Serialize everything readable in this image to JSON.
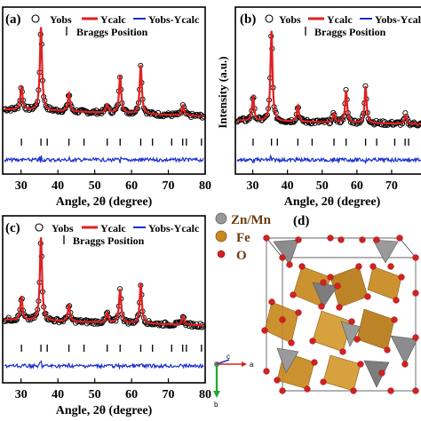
{
  "figure": {
    "panels": {
      "a": {
        "label": "(a)"
      },
      "b": {
        "label": "(b)"
      },
      "c": {
        "label": "(c)"
      },
      "d": {
        "label": "(d)"
      }
    },
    "legend": {
      "yobs": "Yobs",
      "ycalc": "Ycalc",
      "diff": "Yobs-Ycalc",
      "braggs": "Braggs Position"
    },
    "colors": {
      "ycalc": "#e02020",
      "diff": "#1a2fcc",
      "obs": "#000000"
    },
    "xlabel": "Angle, 2θ (degree)",
    "ylabel": "Intensity (a.u.)",
    "structure_legend": {
      "items": [
        {
          "label": "Zn/Mn",
          "color": "#9a9a9a"
        },
        {
          "label": "Fe",
          "color": "#c8891e"
        },
        {
          "label": "O",
          "color": "#d62020"
        }
      ]
    },
    "axes_gizmo": {
      "a": "a",
      "b": "b",
      "c": "c"
    }
  },
  "chart_data": [
    {
      "panel": "a",
      "type": "line",
      "xlabel": "Angle, 2θ (degree)",
      "ylabel": "",
      "xlim": [
        25,
        80
      ],
      "xticks": [
        30,
        40,
        50,
        60,
        70,
        80
      ],
      "series": [
        {
          "name": "Yobs",
          "style": "open-circles"
        },
        {
          "name": "Ycalc",
          "style": "line"
        },
        {
          "name": "Yobs-Ycalc",
          "style": "line"
        }
      ],
      "peaks": [
        [
          30.1,
          0.28
        ],
        [
          35.4,
          1.0
        ],
        [
          43.0,
          0.22
        ],
        [
          53.4,
          0.1
        ],
        [
          56.9,
          0.45
        ],
        [
          62.5,
          0.58
        ],
        [
          74.0,
          0.12
        ]
      ],
      "baseline": 0.12,
      "bragg_positions": [
        30.1,
        35.4,
        37.1,
        43.0,
        47.1,
        53.4,
        56.9,
        62.5,
        65.7,
        70.9,
        73.9,
        74.9,
        79.0
      ]
    },
    {
      "panel": "b",
      "type": "line",
      "xlabel": "Angle, 2θ (degree)",
      "ylabel": "Intensity (a.u.)",
      "xlim": [
        25,
        80
      ],
      "xticks": [
        30,
        40,
        50,
        60,
        70
      ],
      "series": [
        {
          "name": "Yobs",
          "style": "open-circles"
        },
        {
          "name": "Ycalc",
          "style": "line"
        },
        {
          "name": "Yobs-Ycalc",
          "style": "line"
        }
      ],
      "peaks": [
        [
          30.1,
          0.28
        ],
        [
          35.4,
          1.0
        ],
        [
          43.0,
          0.18
        ],
        [
          53.4,
          0.1
        ],
        [
          56.9,
          0.35
        ],
        [
          62.5,
          0.4
        ],
        [
          74.0,
          0.1
        ]
      ],
      "baseline": 0.06,
      "bragg_positions": [
        30.1,
        35.4,
        37.1,
        43.0,
        47.1,
        53.4,
        56.9,
        62.5,
        65.7,
        70.9,
        73.9,
        74.9,
        79.0
      ]
    },
    {
      "panel": "c",
      "type": "line",
      "xlabel": "Angle, 2θ (degree)",
      "ylabel": "",
      "xlim": [
        25,
        80
      ],
      "xticks": [
        30,
        40,
        50,
        60,
        70,
        80
      ],
      "series": [
        {
          "name": "Yobs",
          "style": "open-circles"
        },
        {
          "name": "Ycalc",
          "style": "line"
        },
        {
          "name": "Yobs-Ycalc",
          "style": "line"
        }
      ],
      "peaks": [
        [
          30.1,
          0.28
        ],
        [
          35.4,
          1.0
        ],
        [
          43.0,
          0.2
        ],
        [
          53.4,
          0.12
        ],
        [
          56.9,
          0.4
        ],
        [
          62.5,
          0.48
        ],
        [
          74.0,
          0.1
        ]
      ],
      "baseline": 0.1,
      "bragg_positions": [
        30.1,
        35.4,
        37.1,
        43.0,
        47.1,
        53.4,
        56.9,
        62.5,
        65.7,
        70.9,
        73.9,
        74.9,
        79.0
      ]
    }
  ]
}
